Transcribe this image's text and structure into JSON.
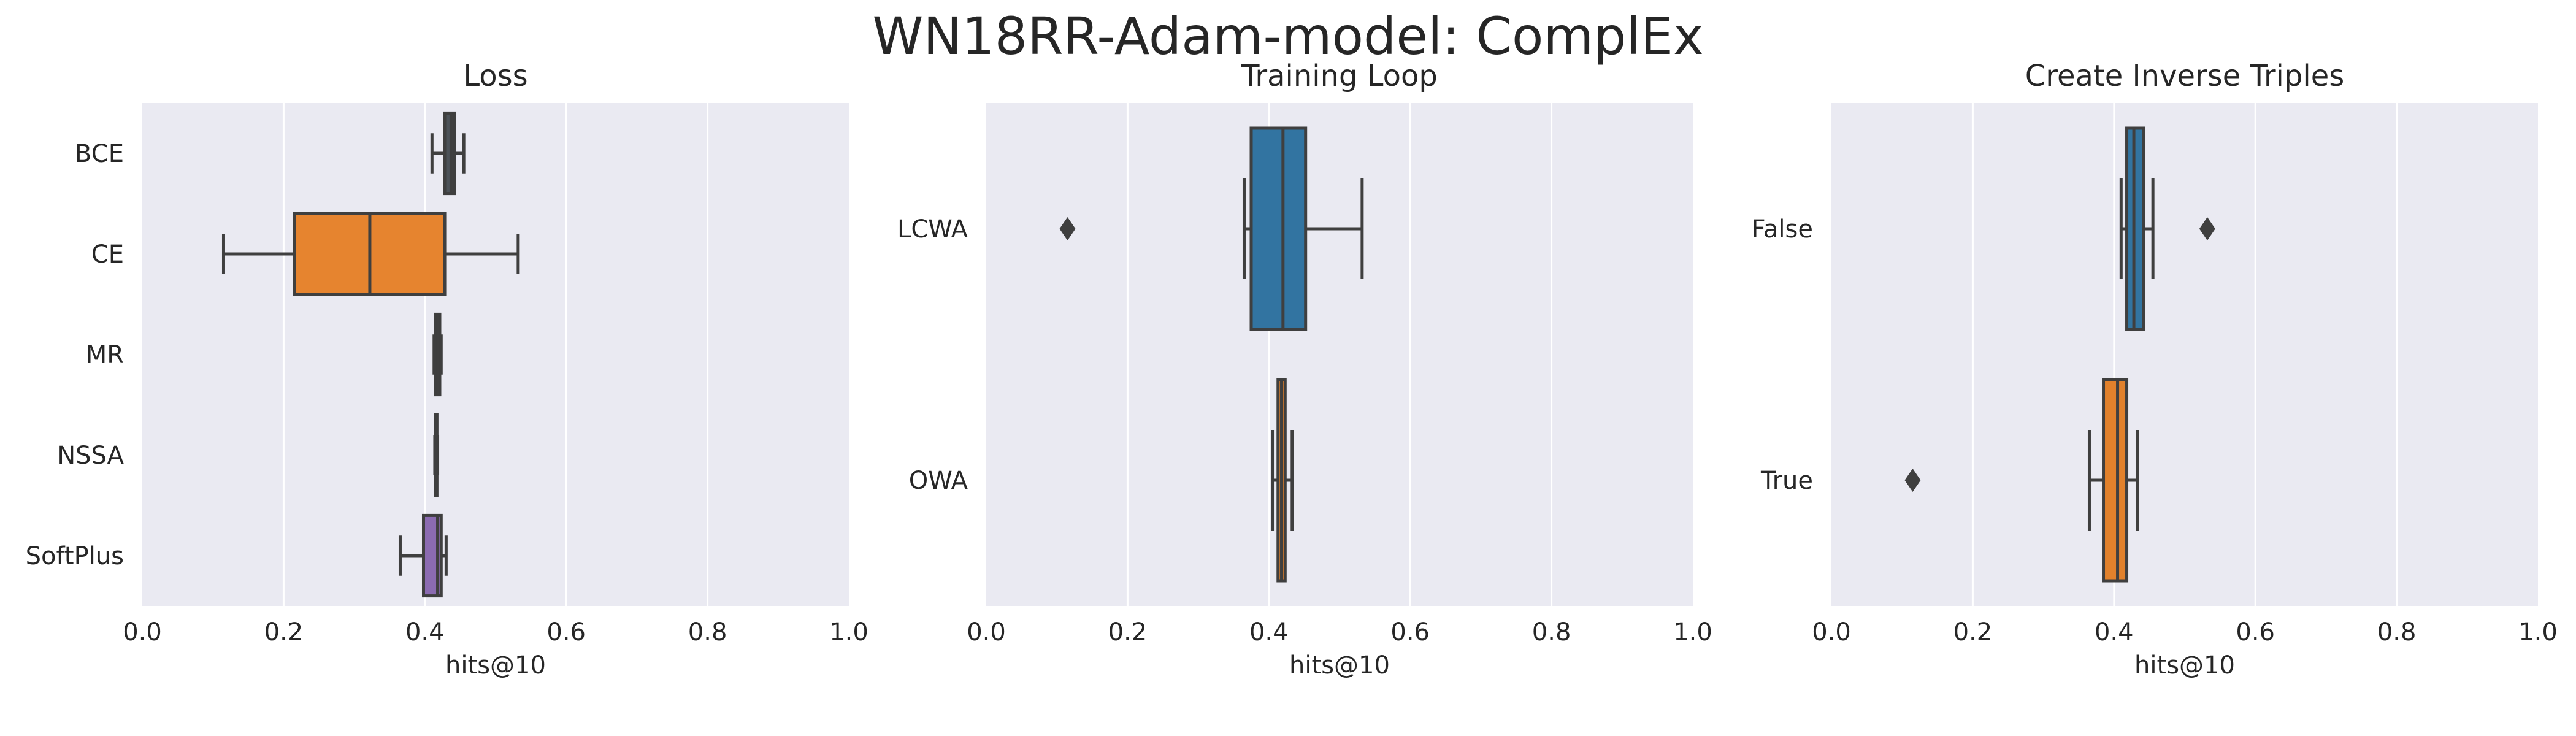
{
  "title": "WN18RR-Adam-model: ComplEx",
  "chart_data": [
    {
      "type": "box",
      "orientation": "horizontal",
      "title": "Loss",
      "xlabel": "hits@10",
      "xlim": [
        0,
        1
      ],
      "xticks": [
        "0.0",
        "0.2",
        "0.4",
        "0.6",
        "0.8",
        "1.0"
      ],
      "grid": true,
      "categories": [
        "BCE",
        "CE",
        "MR",
        "NSSA",
        "SoftPlus"
      ],
      "boxes": [
        {
          "category": "BCE",
          "whisker_low": 0.41,
          "q1": 0.428,
          "median": 0.437,
          "q3": 0.442,
          "whisker_high": 0.455,
          "outliers": [],
          "color": "#4c5258"
        },
        {
          "category": "CE",
          "whisker_low": 0.115,
          "q1": 0.215,
          "median": 0.322,
          "q3": 0.428,
          "whisker_high": 0.532,
          "outliers": [],
          "color": "#e6842f"
        },
        {
          "category": "MR",
          "whisker_low": 0.413,
          "q1": 0.415,
          "median": 0.418,
          "q3": 0.421,
          "whisker_high": 0.423,
          "outliers": [],
          "color": "#4a6a4a"
        },
        {
          "category": "NSSA",
          "whisker_low": 0.414,
          "q1": 0.415,
          "median": 0.416,
          "q3": 0.417,
          "whisker_high": 0.418,
          "outliers": [],
          "color": "#5a3a3a"
        },
        {
          "category": "SoftPlus",
          "whisker_low": 0.365,
          "q1": 0.398,
          "median": 0.418,
          "q3": 0.423,
          "whisker_high": 0.43,
          "outliers": [],
          "color": "#8b6bb1"
        }
      ]
    },
    {
      "type": "box",
      "orientation": "horizontal",
      "title": "Training Loop",
      "xlabel": "hits@10",
      "xlim": [
        0,
        1
      ],
      "xticks": [
        "0.0",
        "0.2",
        "0.4",
        "0.6",
        "0.8",
        "1.0"
      ],
      "grid": true,
      "categories": [
        "LCWA",
        "OWA"
      ],
      "boxes": [
        {
          "category": "LCWA",
          "whisker_low": 0.365,
          "q1": 0.375,
          "median": 0.42,
          "q3": 0.452,
          "whisker_high": 0.532,
          "outliers": [
            0.115
          ],
          "color": "#3274a1"
        },
        {
          "category": "OWA",
          "whisker_low": 0.405,
          "q1": 0.413,
          "median": 0.418,
          "q3": 0.423,
          "whisker_high": 0.433,
          "outliers": [],
          "color": "#e1812c"
        }
      ]
    },
    {
      "type": "box",
      "orientation": "horizontal",
      "title": "Create Inverse Triples",
      "xlabel": "hits@10",
      "xlim": [
        0,
        1
      ],
      "xticks": [
        "0.0",
        "0.2",
        "0.4",
        "0.6",
        "0.8",
        "1.0"
      ],
      "grid": true,
      "categories": [
        "False",
        "True"
      ],
      "boxes": [
        {
          "category": "False",
          "whisker_low": 0.41,
          "q1": 0.418,
          "median": 0.428,
          "q3": 0.442,
          "whisker_high": 0.455,
          "outliers": [
            0.532
          ],
          "color": "#3274a1"
        },
        {
          "category": "True",
          "whisker_low": 0.365,
          "q1": 0.385,
          "median": 0.405,
          "q3": 0.418,
          "whisker_high": 0.433,
          "outliers": [
            0.115
          ],
          "color": "#e1812c"
        }
      ]
    }
  ]
}
